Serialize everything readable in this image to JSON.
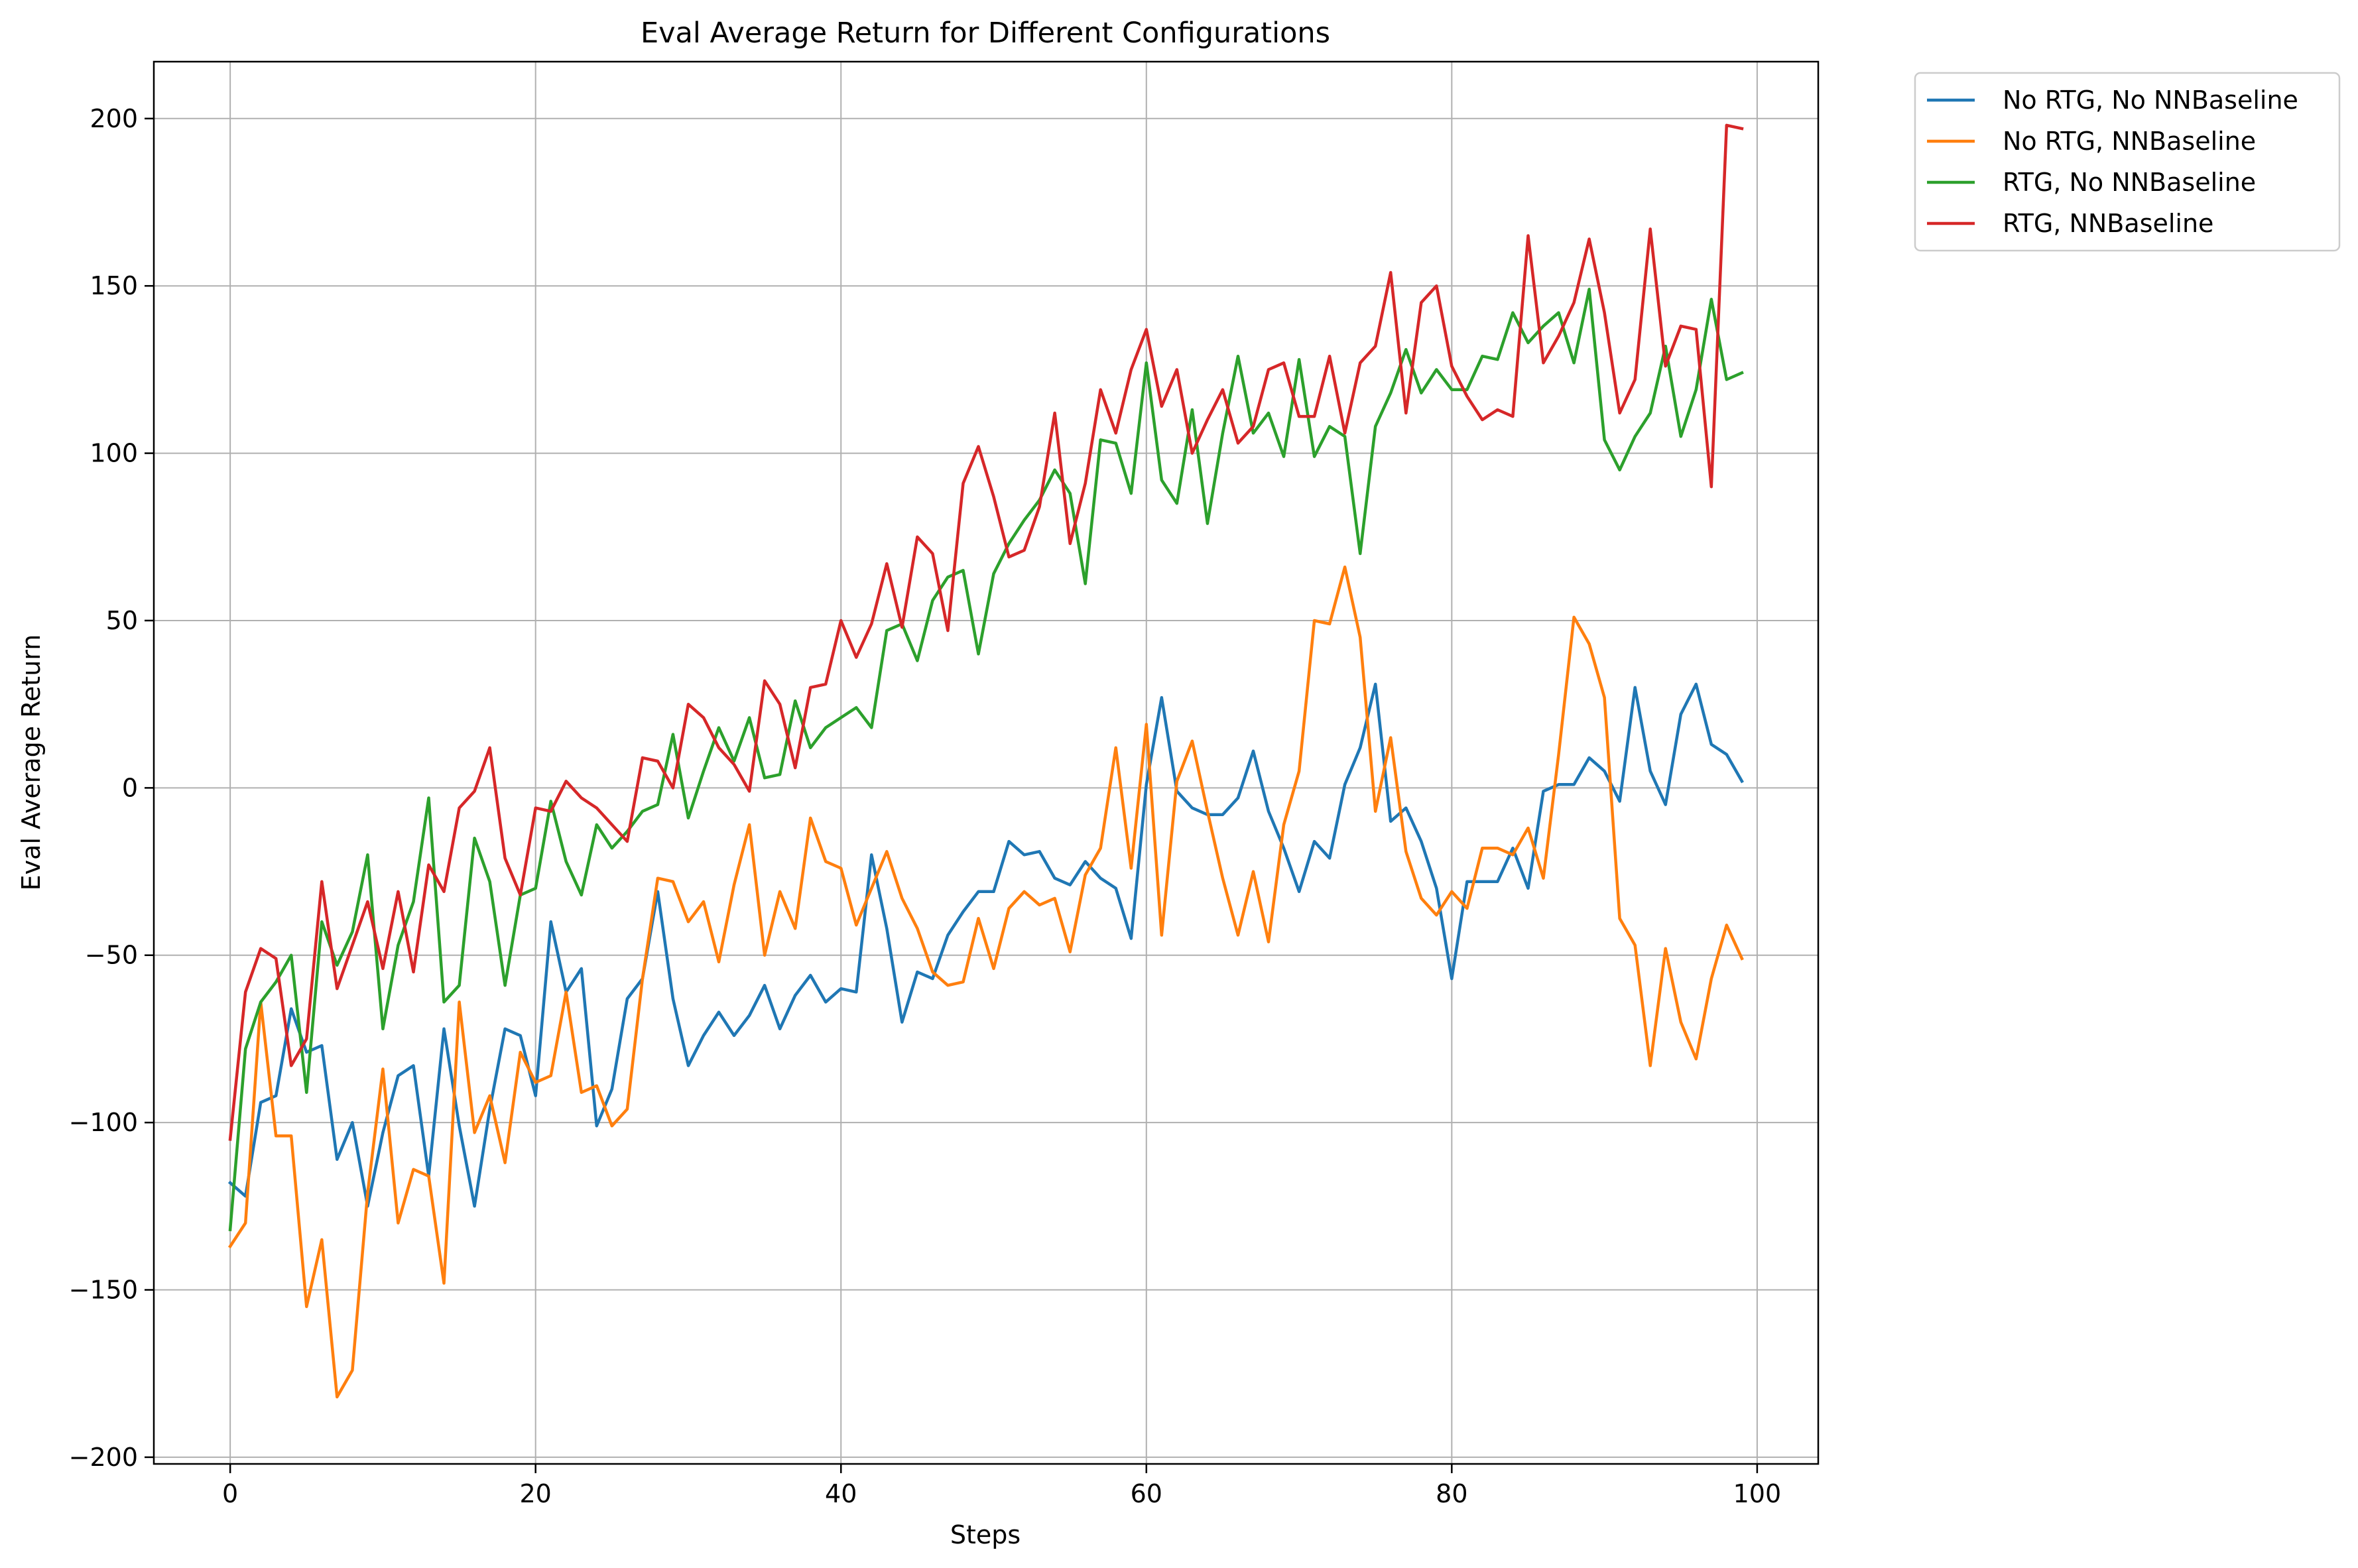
{
  "chart_data": {
    "type": "line",
    "title": "Eval Average Return for Different Configurations",
    "xlabel": "Steps",
    "ylabel": "Eval Average Return",
    "xlim": [
      -5,
      104
    ],
    "ylim": [
      -202,
      217
    ],
    "xticks": [
      0,
      20,
      40,
      60,
      80,
      100
    ],
    "yticks": [
      -200,
      -150,
      -100,
      -50,
      0,
      50,
      100,
      150,
      200
    ],
    "grid": true,
    "legend_position": "outside-top-right",
    "x": [
      0,
      1,
      2,
      3,
      4,
      5,
      6,
      7,
      8,
      9,
      10,
      11,
      12,
      13,
      14,
      15,
      16,
      17,
      18,
      19,
      20,
      21,
      22,
      23,
      24,
      25,
      26,
      27,
      28,
      29,
      30,
      31,
      32,
      33,
      34,
      35,
      36,
      37,
      38,
      39,
      40,
      41,
      42,
      43,
      44,
      45,
      46,
      47,
      48,
      49,
      50,
      51,
      52,
      53,
      54,
      55,
      56,
      57,
      58,
      59,
      60,
      61,
      62,
      63,
      64,
      65,
      66,
      67,
      68,
      69,
      70,
      71,
      72,
      73,
      74,
      75,
      76,
      77,
      78,
      79,
      80,
      81,
      82,
      83,
      84,
      85,
      86,
      87,
      88,
      89,
      90,
      91,
      92,
      93,
      94,
      95,
      96,
      97,
      98,
      99
    ],
    "series": [
      {
        "name": "No RTG, No NNBaseline",
        "color": "#1f77b4",
        "values": [
          -118,
          -122,
          -94,
          -92,
          -66,
          -79,
          -77,
          -111,
          -100,
          -125,
          -103,
          -86,
          -83,
          -116,
          -72,
          -101,
          -125,
          -96,
          -72,
          -74,
          -92,
          -40,
          -61,
          -54,
          -101,
          -90,
          -63,
          -57,
          -31,
          -63,
          -83,
          -74,
          -67,
          -74,
          -68,
          -59,
          -72,
          -62,
          -56,
          -64,
          -60,
          -61,
          -20,
          -42,
          -70,
          -55,
          -57,
          -44,
          -37,
          -31,
          -31,
          -16,
          -20,
          -19,
          -27,
          -29,
          -22,
          -27,
          -30,
          -45,
          1,
          27,
          -1,
          -6,
          -8,
          -8,
          -3,
          11,
          -7,
          -18,
          -31,
          -16,
          -21,
          1,
          12,
          31,
          -10,
          -6,
          -16,
          -30,
          -57,
          -28,
          -28,
          -28,
          -18,
          -30,
          -1,
          1,
          1,
          9,
          5,
          -4,
          30,
          5,
          -5,
          22,
          31,
          13,
          10,
          2
        ]
      },
      {
        "name": "No RTG, NNBaseline",
        "color": "#ff7f0e",
        "values": [
          -137,
          -130,
          -64,
          -104,
          -104,
          -155,
          -135,
          -182,
          -174,
          -121,
          -84,
          -130,
          -114,
          -116,
          -148,
          -64,
          -103,
          -92,
          -112,
          -79,
          -88,
          -86,
          -61,
          -91,
          -89,
          -101,
          -96,
          -57,
          -27,
          -28,
          -40,
          -34,
          -52,
          -29,
          -11,
          -50,
          -31,
          -42,
          -9,
          -22,
          -24,
          -41,
          -30,
          -19,
          -33,
          -42,
          -55,
          -59,
          -58,
          -39,
          -54,
          -36,
          -31,
          -35,
          -33,
          -49,
          -26,
          -18,
          12,
          -24,
          19,
          -44,
          2,
          14,
          -7,
          -27,
          -44,
          -25,
          -46,
          -11,
          5,
          50,
          49,
          66,
          45,
          -7,
          15,
          -19,
          -33,
          -38,
          -31,
          -36,
          -18,
          -18,
          -20,
          -12,
          -27,
          10,
          51,
          43,
          27,
          -39,
          -47,
          -83,
          -48,
          -70,
          -81,
          -57,
          -41,
          -51
        ]
      },
      {
        "name": "RTG, No NNBaseline",
        "color": "#2ca02c",
        "values": [
          -132,
          -78,
          -64,
          -58,
          -50,
          -91,
          -40,
          -53,
          -43,
          -20,
          -72,
          -47,
          -34,
          -3,
          -64,
          -59,
          -15,
          -28,
          -59,
          -32,
          -30,
          -4,
          -22,
          -32,
          -11,
          -18,
          -13,
          -7,
          -5,
          16,
          -9,
          5,
          18,
          8,
          21,
          3,
          4,
          26,
          12,
          18,
          21,
          24,
          18,
          47,
          49,
          38,
          56,
          63,
          65,
          40,
          64,
          73,
          80,
          86,
          95,
          88,
          61,
          104,
          103,
          88,
          127,
          92,
          85,
          113,
          79,
          106,
          129,
          106,
          112,
          99,
          128,
          99,
          108,
          105,
          70,
          108,
          118,
          131,
          118,
          125,
          119,
          119,
          129,
          128,
          142,
          133,
          138,
          142,
          127,
          149,
          104,
          95,
          105,
          112,
          132,
          105,
          119,
          146,
          122,
          124
        ]
      },
      {
        "name": "RTG, NNBaseline",
        "color": "#d62728",
        "values": [
          -105,
          -61,
          -48,
          -51,
          -83,
          -75,
          -28,
          -60,
          -47,
          -34,
          -54,
          -31,
          -55,
          -23,
          -31,
          -6,
          -1,
          12,
          -21,
          -32,
          -6,
          -7,
          2,
          -3,
          -6,
          -11,
          -16,
          9,
          8,
          0,
          25,
          21,
          12,
          7,
          -1,
          32,
          25,
          6,
          30,
          31,
          50,
          39,
          49,
          67,
          48,
          75,
          70,
          47,
          91,
          102,
          87,
          69,
          71,
          84,
          112,
          73,
          91,
          119,
          106,
          125,
          137,
          114,
          125,
          100,
          110,
          119,
          103,
          108,
          125,
          127,
          111,
          111,
          129,
          106,
          127,
          132,
          154,
          112,
          145,
          150,
          126,
          117,
          110,
          113,
          111,
          165,
          127,
          135,
          145,
          164,
          142,
          112,
          122,
          167,
          126,
          138,
          137,
          90,
          198,
          197
        ]
      }
    ]
  }
}
